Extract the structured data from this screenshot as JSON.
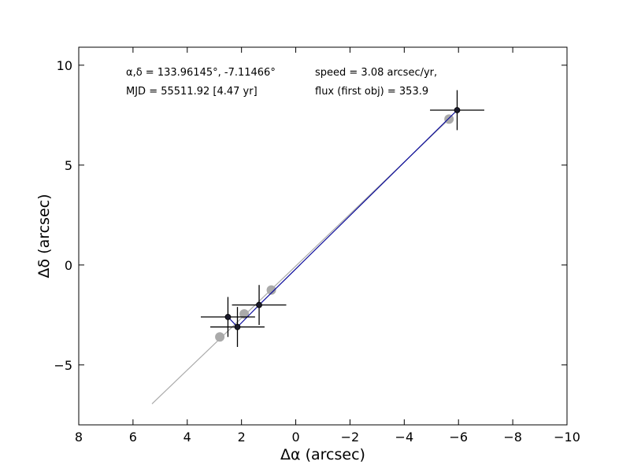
{
  "chart_data": {
    "type": "scatter",
    "title": "",
    "xlabel": "Δα (arcsec)",
    "ylabel": "Δδ (arcsec)",
    "xlim": [
      8,
      -10
    ],
    "ylim": [
      -8,
      10.9
    ],
    "x_ticks": [
      8,
      6,
      4,
      2,
      0,
      -2,
      -4,
      -6,
      -8,
      -10
    ],
    "x_tick_labels": [
      "8",
      "6",
      "4",
      "2",
      "0",
      "−2",
      "−4",
      "−6",
      "−8",
      "−10"
    ],
    "y_ticks": [
      10,
      5,
      0,
      -5
    ],
    "y_tick_labels": [
      "10",
      "5",
      "0",
      "−5"
    ],
    "grid": false,
    "annotations": [
      "α,δ = 133.96145°, -7.11466°",
      "MJD = 55511.92 [4.47 yr]",
      "speed = 3.08 arcsec/yr,",
      "flux (first obj) = 353.9"
    ],
    "series": [
      {
        "kind": "measured",
        "color": "#0a0a9a",
        "marker_color": "#1a1a2a",
        "points": [
          {
            "x": 2.5,
            "y": -2.6,
            "xerr": 1.0,
            "yerr": 1.0
          },
          {
            "x": 2.15,
            "y": -3.1,
            "xerr": 1.0,
            "yerr": 1.0
          },
          {
            "x": 1.35,
            "y": -2.0,
            "xerr": 1.0,
            "yerr": 1.0
          },
          {
            "x": -5.95,
            "y": 7.75,
            "xerr": 1.0,
            "yerr": 1.0
          }
        ]
      },
      {
        "kind": "model",
        "color": "#aaaaaa",
        "line": [
          [
            5.3,
            -6.95
          ],
          [
            -5.65,
            7.3
          ]
        ],
        "points": [
          {
            "x": 2.8,
            "y": -3.6
          },
          {
            "x": 1.9,
            "y": -2.45
          },
          {
            "x": 0.9,
            "y": -1.25
          },
          {
            "x": -5.65,
            "y": 7.3
          }
        ]
      }
    ]
  }
}
